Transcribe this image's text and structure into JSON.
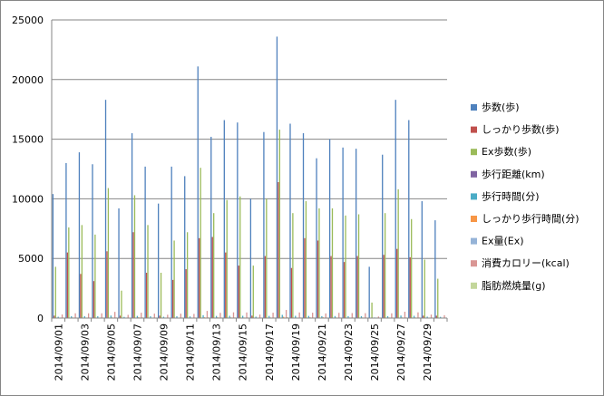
{
  "chart_data": {
    "type": "bar",
    "ylim": [
      0,
      25000
    ],
    "y_ticks": [
      "0",
      "5000",
      "10000",
      "15000",
      "20000",
      "25000"
    ],
    "grid": true,
    "legend_position": "right",
    "categories": [
      "2014/09/01",
      "2014/09/02",
      "2014/09/03",
      "2014/09/04",
      "2014/09/05",
      "2014/09/06",
      "2014/09/07",
      "2014/09/08",
      "2014/09/09",
      "2014/09/10",
      "2014/09/11",
      "2014/09/12",
      "2014/09/13",
      "2014/09/14",
      "2014/09/15",
      "2014/09/16",
      "2014/09/17",
      "2014/09/18",
      "2014/09/19",
      "2014/09/20",
      "2014/09/21",
      "2014/09/22",
      "2014/09/23",
      "2014/09/24",
      "2014/09/25",
      "2014/09/26",
      "2014/09/27",
      "2014/09/28",
      "2014/09/29",
      "2014/09/30"
    ],
    "x_tick_labels": [
      "2014/09/01",
      "2014/09/03",
      "2014/09/05",
      "2014/09/07",
      "2014/09/09",
      "2014/09/11",
      "2014/09/13",
      "2014/09/15",
      "2014/09/17",
      "2014/09/19",
      "2014/09/21",
      "2014/09/23",
      "2014/09/25",
      "2014/09/27",
      "2014/09/29"
    ],
    "series": [
      {
        "name": "歩数(歩)",
        "color": "#4F81BD",
        "values": [
          10400,
          13000,
          13900,
          12900,
          18300,
          9200,
          15500,
          12700,
          9600,
          12700,
          11900,
          21100,
          15200,
          16600,
          16400,
          10000,
          15600,
          23600,
          16300,
          15500,
          13400,
          15000,
          14300,
          14200,
          4300,
          13700,
          18300,
          16600,
          9800,
          8200
        ]
      },
      {
        "name": "しっかり歩数(歩)",
        "color": "#C0504D",
        "values": [
          200,
          5500,
          3700,
          3100,
          5600,
          200,
          7200,
          3800,
          200,
          3200,
          4100,
          6700,
          6800,
          5500,
          4400,
          200,
          5200,
          11400,
          4200,
          6700,
          6500,
          5200,
          4700,
          5200,
          0,
          5300,
          5800,
          5100,
          200,
          200
        ]
      },
      {
        "name": "Ex歩数(歩)",
        "color": "#9BBB59",
        "values": [
          4300,
          7600,
          7800,
          7000,
          10900,
          2300,
          10300,
          7800,
          3800,
          6500,
          7200,
          12600,
          8800,
          9900,
          10200,
          4400,
          10000,
          15800,
          8800,
          9800,
          9200,
          9200,
          8600,
          8700,
          1300,
          8800,
          10800,
          8300,
          4900,
          3300
        ]
      },
      {
        "name": "歩行距離(km)",
        "color": "#8064A2",
        "values": [
          10,
          11,
          11,
          11,
          13,
          8,
          12,
          10,
          8,
          10,
          10,
          15,
          12,
          13,
          13,
          9,
          12,
          16,
          12,
          12,
          11,
          12,
          11,
          11,
          4,
          11,
          13,
          12,
          8,
          7
        ]
      },
      {
        "name": "歩行時間(分)",
        "color": "#4BACC6",
        "values": [
          110,
          150,
          160,
          150,
          210,
          100,
          180,
          150,
          110,
          150,
          140,
          240,
          180,
          190,
          190,
          120,
          180,
          270,
          190,
          180,
          160,
          170,
          160,
          160,
          50,
          160,
          210,
          190,
          120,
          100
        ]
      },
      {
        "name": "しっかり歩行時間(分)",
        "color": "#F79646",
        "values": [
          10,
          50,
          40,
          30,
          55,
          5,
          70,
          40,
          5,
          30,
          40,
          65,
          65,
          55,
          45,
          5,
          50,
          110,
          40,
          65,
          65,
          50,
          45,
          50,
          0,
          50,
          55,
          50,
          5,
          5
        ]
      },
      {
        "name": "Ex量(Ex)",
        "color": "#95B3D7",
        "values": [
          1,
          2,
          2,
          2,
          3,
          1,
          3,
          2,
          1,
          2,
          2,
          4,
          3,
          3,
          3,
          1,
          3,
          5,
          3,
          3,
          3,
          3,
          2,
          2,
          0,
          2,
          3,
          3,
          1,
          1
        ]
      },
      {
        "name": "消費カロリー(kcal)",
        "color": "#D99694",
        "values": [
          300,
          400,
          400,
          400,
          520,
          270,
          450,
          370,
          280,
          370,
          350,
          600,
          440,
          480,
          470,
          290,
          450,
          680,
          470,
          450,
          390,
          440,
          420,
          410,
          130,
          400,
          530,
          480,
          290,
          240
        ]
      },
      {
        "name": "脂肪燃焼量(g)",
        "color": "#C3D69B",
        "values": [
          30,
          40,
          40,
          40,
          55,
          25,
          50,
          40,
          30,
          40,
          35,
          65,
          45,
          50,
          50,
          30,
          45,
          75,
          50,
          45,
          40,
          45,
          45,
          40,
          10,
          40,
          55,
          50,
          30,
          25
        ]
      }
    ]
  }
}
